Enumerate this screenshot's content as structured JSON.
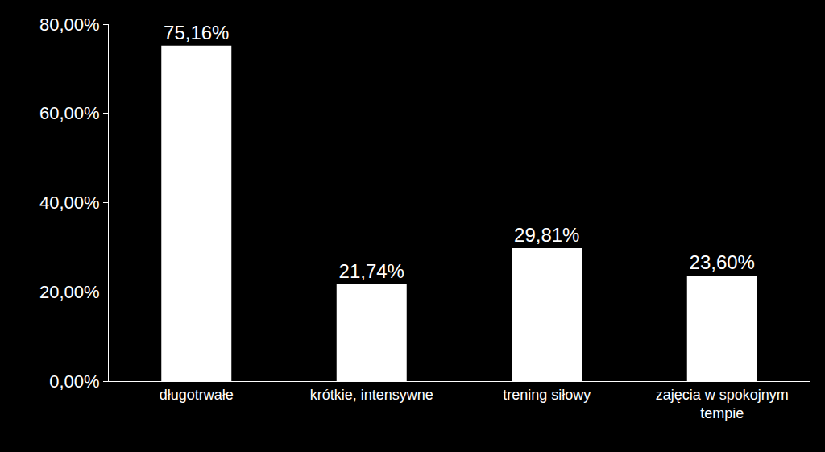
{
  "chart_data": {
    "type": "bar",
    "categories": [
      "długotrwałe",
      "krótkie, intensywne",
      "trening siłowy",
      "zajęcia w spokojnym tempie"
    ],
    "values": [
      75.16,
      21.74,
      29.81,
      23.6
    ],
    "value_labels": [
      "75,16%",
      "21,74%",
      "29,81%",
      "23,60%"
    ],
    "data_labels": true,
    "color": "#ffffff",
    "ylim": [
      0,
      80
    ],
    "yticks": [
      {
        "value": 0,
        "label": "0,00%"
      },
      {
        "value": 20,
        "label": "20,00%"
      },
      {
        "value": 40,
        "label": "40,00%"
      },
      {
        "value": 60,
        "label": "60,00%"
      },
      {
        "value": 80,
        "label": "80,00%"
      }
    ],
    "grid": false
  }
}
